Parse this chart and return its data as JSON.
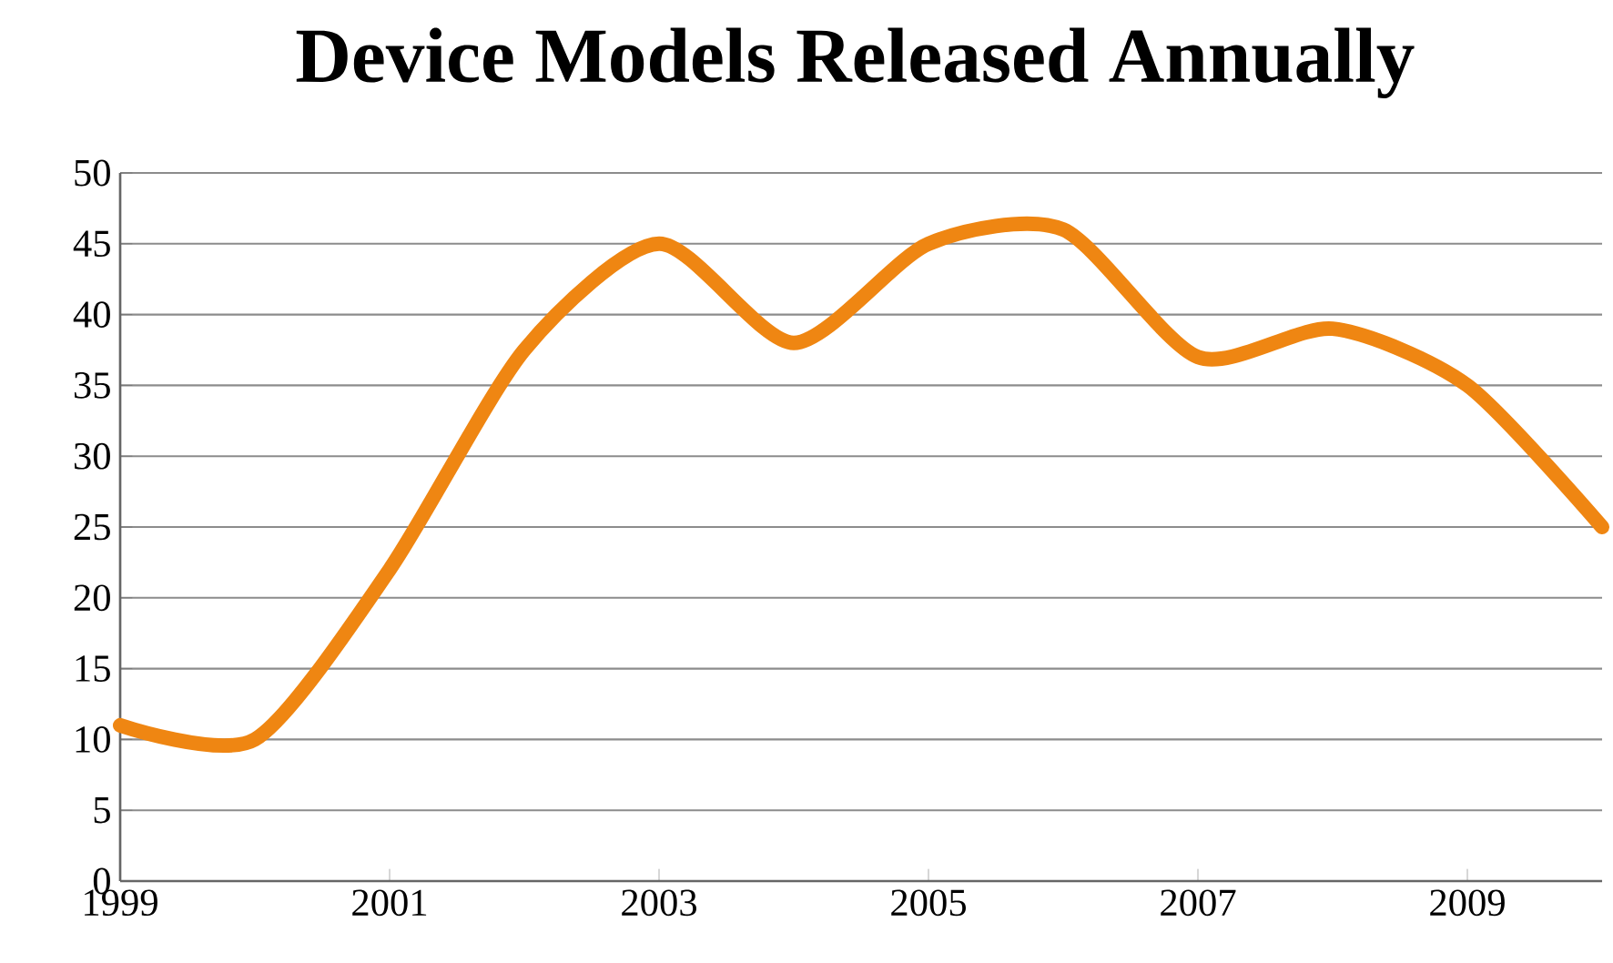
{
  "chart_data": {
    "type": "line",
    "title": "Device Models Released Annually",
    "x": [
      1999,
      2000,
      2001,
      2002,
      2003,
      2004,
      2005,
      2006,
      2007,
      2008,
      2009,
      2010
    ],
    "series": [
      {
        "color": "#ef8612",
        "values": [
          11,
          10,
          22,
          37.5,
          45,
          38,
          45,
          46,
          37,
          39,
          35,
          25
        ]
      }
    ],
    "xlim": [
      1999,
      2010
    ],
    "xticks": [
      1999,
      2001,
      2003,
      2005,
      2007,
      2009
    ],
    "ylim": [
      0,
      50
    ],
    "yticks": [
      0,
      5,
      10,
      15,
      20,
      25,
      30,
      35,
      40,
      45,
      50
    ],
    "grid": "y"
  }
}
